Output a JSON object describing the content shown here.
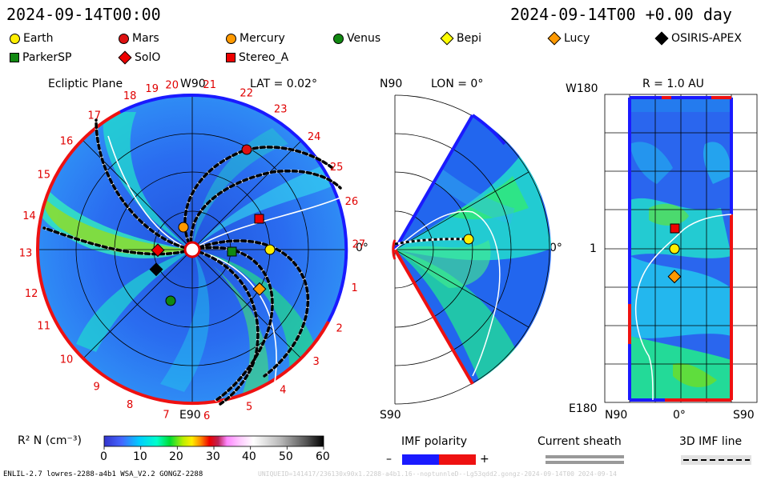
{
  "header": {
    "datetime_left": "2024-09-14T00:00",
    "datetime_right": "2024-09-14T00 +0.00 day"
  },
  "legend": [
    {
      "name": "Earth",
      "shape": "circle",
      "color": "#ffee00"
    },
    {
      "name": "Mars",
      "shape": "circle",
      "color": "#dd1111"
    },
    {
      "name": "Mercury",
      "shape": "circle",
      "color": "#ff9900"
    },
    {
      "name": "Venus",
      "shape": "circle",
      "color": "#118811"
    },
    {
      "name": "Bepi",
      "shape": "diamond",
      "color": "#ffff00"
    },
    {
      "name": "Lucy",
      "shape": "diamond",
      "color": "#ff9900"
    },
    {
      "name": "OSIRIS-APEX",
      "shape": "diamond",
      "color": "#000000"
    },
    {
      "name": "ParkerSP",
      "shape": "square",
      "color": "#118811"
    },
    {
      "name": "SolO",
      "shape": "diamond",
      "color": "#ee0000"
    },
    {
      "name": "Stereo_A",
      "shape": "square",
      "color": "#ee0000"
    }
  ],
  "chart_data": [
    {
      "type": "polar",
      "panel": "ecliptic",
      "title": "Ecliptic Plane",
      "lat_label": "LAT = 0.02°",
      "top_label": "W90",
      "bottom_label": "E90",
      "right_label": "0°",
      "carrington_ticks": [
        "19",
        "20",
        "21",
        "22",
        "23",
        "24",
        "25",
        "26",
        "27",
        "1",
        "2",
        "3",
        "4",
        "5",
        "6",
        "7",
        "8",
        "9",
        "10",
        "11",
        "12",
        "13",
        "14",
        "15",
        "16",
        "17",
        "18"
      ],
      "tick_angles_deg": [
        104,
        97,
        84,
        71,
        58,
        43,
        30,
        17,
        2,
        -13,
        -28,
        -42,
        -57,
        -70,
        -85,
        -99,
        -112,
        -125,
        -139,
        -153,
        -165,
        -179,
        -192,
        -207,
        -221,
        -234,
        -248
      ],
      "bodies": [
        {
          "name": "Mars",
          "r_au": 1.37,
          "angle_deg": 70
        },
        {
          "name": "Stereo_A",
          "r_au": 0.97,
          "angle_deg": 20
        },
        {
          "name": "Earth",
          "r_au": 1.0,
          "angle_deg": 0
        },
        {
          "name": "ParkerSP",
          "r_au": 0.5,
          "angle_deg": -2
        },
        {
          "name": "Lucy",
          "r_au": 1.0,
          "angle_deg": -30
        },
        {
          "name": "Mercury",
          "r_au": 0.34,
          "angle_deg": 100
        },
        {
          "name": "SolO",
          "r_au": 0.44,
          "angle_deg": 180
        },
        {
          "name": "OSIRIS-APEX",
          "r_au": 0.52,
          "angle_deg": 202
        },
        {
          "name": "Venus",
          "r_au": 0.71,
          "angle_deg": 247
        }
      ]
    },
    {
      "type": "polar-sector",
      "panel": "meridional",
      "title": "LON = 0°",
      "top_label": "N90",
      "bottom_label": "S90",
      "right_label": "0°"
    },
    {
      "type": "map",
      "panel": "radial",
      "title": "R = 1.0 AU",
      "y_top": "W180",
      "y_mid": "1",
      "y_bottom": "E180",
      "x_left": "N90",
      "x_mid": "0°",
      "x_right": "S90"
    }
  ],
  "colorbar": {
    "label": "R² N (cm⁻³)",
    "ticks": [
      "0",
      "10",
      "20",
      "30",
      "40",
      "50",
      "60"
    ],
    "range": [
      0,
      60
    ]
  },
  "imf": {
    "title": "IMF polarity",
    "minus": "–",
    "plus": "+"
  },
  "sheath": {
    "title": "Current sheath"
  },
  "imf3d": {
    "title": "3D IMF line"
  },
  "footer": {
    "left": "ENLIL-2.7 lowres-2288-a4b1 WSA_V2.2 GONGZ-2288",
    "right": "UNIQUEID=141417/236130x90x1.2288-a4b1.16--noptunnleD--Lg53qdd2.gongz-2024-09-14T00  2024-09-14"
  }
}
